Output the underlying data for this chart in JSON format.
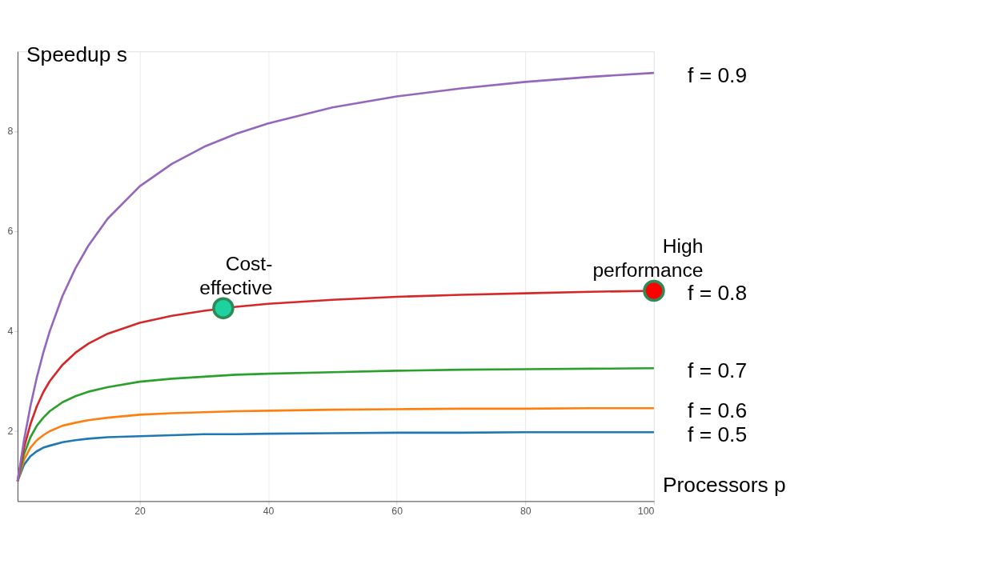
{
  "chart_data": {
    "type": "line",
    "xlabel": "Processors p",
    "ylabel": "Speedup s",
    "x": [
      1,
      2,
      3,
      4,
      5,
      6,
      8,
      10,
      12,
      15,
      20,
      25,
      30,
      35,
      40,
      50,
      60,
      70,
      80,
      90,
      100
    ],
    "series": [
      {
        "name": "f = 0.5",
        "color": "#1f77b4",
        "values": [
          1,
          1.33,
          1.5,
          1.6,
          1.67,
          1.71,
          1.78,
          1.82,
          1.85,
          1.88,
          1.9,
          1.92,
          1.94,
          1.94,
          1.95,
          1.96,
          1.97,
          1.97,
          1.98,
          1.98,
          1.98
        ]
      },
      {
        "name": "f = 0.6",
        "color": "#ff7f0e",
        "values": [
          1,
          1.43,
          1.67,
          1.82,
          1.92,
          2,
          2.11,
          2.17,
          2.22,
          2.27,
          2.33,
          2.36,
          2.38,
          2.4,
          2.41,
          2.43,
          2.44,
          2.45,
          2.45,
          2.46,
          2.46
        ]
      },
      {
        "name": "f = 0.7",
        "color": "#2ca02c",
        "values": [
          1,
          1.54,
          1.88,
          2.11,
          2.27,
          2.4,
          2.58,
          2.7,
          2.79,
          2.88,
          2.99,
          3.05,
          3.09,
          3.13,
          3.15,
          3.18,
          3.21,
          3.23,
          3.24,
          3.25,
          3.26
        ]
      },
      {
        "name": "f = 0.8",
        "color": "#d62728",
        "values": [
          1,
          1.67,
          2.14,
          2.5,
          2.78,
          3,
          3.33,
          3.57,
          3.75,
          3.95,
          4.17,
          4.31,
          4.41,
          4.49,
          4.55,
          4.63,
          4.69,
          4.73,
          4.76,
          4.79,
          4.81
        ]
      },
      {
        "name": "f = 0.9",
        "color": "#9467bd",
        "values": [
          1,
          1.82,
          2.5,
          3.08,
          3.57,
          4,
          4.71,
          5.26,
          5.71,
          6.25,
          6.9,
          7.35,
          7.69,
          7.95,
          8.16,
          8.48,
          8.7,
          8.86,
          8.99,
          9.09,
          9.17
        ]
      },
      {
        "type": "scatter",
        "marker": "circle",
        "x": [
          33,
          100
        ],
        "values": [
          4.46,
          4.81
        ],
        "colors": [
          "#1dd1a1",
          "#ff0000"
        ]
      }
    ],
    "annotations": [
      {
        "text": "Cost-\neffective",
        "x": 33,
        "y": 4.46
      },
      {
        "text": "High\nperformance",
        "x": 100,
        "y": 4.81
      }
    ],
    "xlim": [
      1,
      100
    ],
    "ylim": [
      0.6,
      9.6
    ],
    "xticks": [
      20,
      40,
      60,
      80,
      100
    ],
    "yticks": [
      2,
      4,
      6,
      8
    ],
    "grid": "x",
    "line_style": "solid"
  }
}
